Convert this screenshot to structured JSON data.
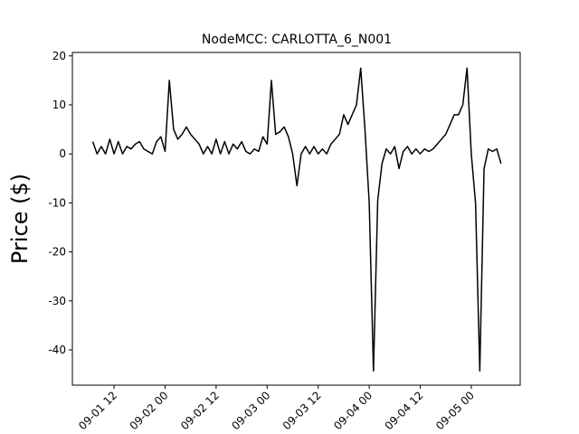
{
  "chart_data": {
    "type": "line",
    "title": "NodeMCC: CARLOTTA_6_N001",
    "ylabel": "Price ($)",
    "x": [
      7,
      8,
      9,
      10,
      11,
      12,
      13,
      14,
      15,
      16,
      17,
      18,
      19,
      20,
      21,
      22,
      23,
      24,
      25,
      26,
      27,
      28,
      29,
      30,
      31,
      32,
      33,
      34,
      35,
      36,
      37,
      38,
      39,
      40,
      41,
      42,
      43,
      44,
      45,
      46,
      47,
      48,
      49,
      50,
      51,
      52,
      53,
      54,
      55,
      56,
      57,
      58,
      59,
      60,
      61,
      62,
      63,
      64,
      65,
      66,
      67,
      68,
      69,
      70,
      71,
      72,
      73,
      74,
      75,
      76,
      77,
      78,
      79,
      80,
      81,
      82,
      83,
      84,
      85,
      86,
      87,
      88,
      89,
      90,
      91,
      92,
      93,
      94,
      95,
      96,
      97,
      98,
      99,
      100,
      101,
      102,
      103
    ],
    "series": [
      {
        "name": "Price",
        "color": "#000000",
        "values": [
          2.5,
          0,
          1.5,
          0,
          3,
          0,
          2.5,
          0,
          1.5,
          1,
          2,
          2.5,
          1,
          0.5,
          0,
          2.5,
          3.5,
          0.5,
          15,
          5,
          3,
          4,
          5.5,
          4,
          3,
          2,
          0,
          1.5,
          0,
          3,
          0,
          2.5,
          0,
          2,
          1,
          2.5,
          0.5,
          0,
          1,
          0.5,
          3.5,
          2,
          15,
          4,
          4.5,
          5.5,
          3.5,
          0,
          -6.5,
          0,
          1.5,
          0,
          1.5,
          0,
          1,
          0,
          2,
          3,
          4,
          8,
          6,
          8,
          10,
          17.5,
          5,
          -10,
          -44.3,
          -9.5,
          -2,
          1,
          0,
          1.5,
          -3,
          0.5,
          1.5,
          0,
          1,
          0,
          1,
          0.5,
          1,
          2,
          3,
          4,
          6,
          8,
          8,
          10,
          17.5,
          0,
          -10,
          -44.3,
          -3,
          1,
          0.5,
          1,
          -2
        ]
      }
    ],
    "xlim": [
      2.2,
      107.5
    ],
    "xticks": [
      {
        "value": 12,
        "label": "09-01 12"
      },
      {
        "value": 24,
        "label": "09-02 00"
      },
      {
        "value": 36,
        "label": "09-02 12"
      },
      {
        "value": 48,
        "label": "09-03 00"
      },
      {
        "value": 60,
        "label": "09-03 12"
      },
      {
        "value": 72,
        "label": "09-04 00"
      },
      {
        "value": 84,
        "label": "09-04 12"
      },
      {
        "value": 96,
        "label": "09-05 00"
      }
    ],
    "ylim": [
      -47.2,
      20.7
    ],
    "yticks": [
      -40,
      -30,
      -20,
      -10,
      0,
      10,
      20
    ]
  }
}
